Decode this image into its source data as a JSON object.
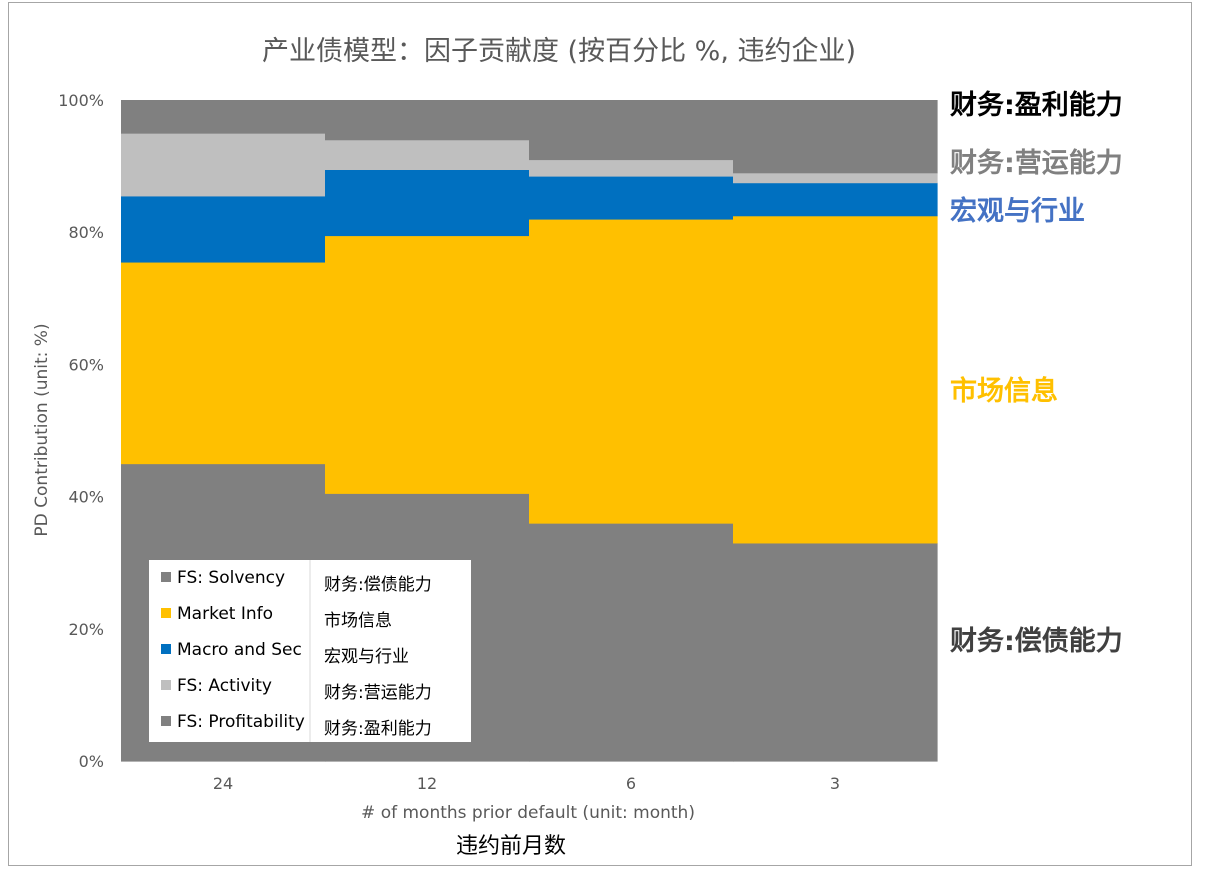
{
  "chart_data": {
    "type": "bar",
    "stacked": true,
    "title": "产业债模型：因子贡献度 (按百分比 %, 违约企业)",
    "xlabel": "# of months prior default (unit: month)",
    "xlabel_sub": "违约前月数",
    "ylabel": "PD Contribution (unit: %)",
    "ylim": [
      0,
      100
    ],
    "yticks": [
      "0%",
      "20%",
      "40%",
      "60%",
      "80%",
      "100%"
    ],
    "categories": [
      "24",
      "12",
      "6",
      "3"
    ],
    "grid": false,
    "legend_position": "bottom-left",
    "series": [
      {
        "name": "FS: Solvency",
        "name_cn": "财务:偿债能力",
        "color": "#808080",
        "values": [
          45,
          40.5,
          36,
          33
        ]
      },
      {
        "name": "Market Info",
        "name_cn": "市场信息",
        "color": "#ffc000",
        "values": [
          30.5,
          39,
          46,
          49.5
        ]
      },
      {
        "name": "Macro and Sec",
        "name_cn": "宏观与行业",
        "color": "#0070c0",
        "values": [
          10,
          10,
          6.5,
          5
        ]
      },
      {
        "name": "FS: Activity",
        "name_cn": "财务:营运能力",
        "color": "#bfbfbf",
        "values": [
          9.5,
          4.5,
          2.5,
          1.5
        ]
      },
      {
        "name": "FS: Profitability",
        "name_cn": "财务:盈利能力",
        "color": "#808080",
        "values": [
          5,
          6,
          9,
          11
        ]
      }
    ],
    "side_labels": [
      {
        "text": "财务:盈利能力",
        "color": "#000000"
      },
      {
        "text": "财务:营运能力",
        "color": "#808080"
      },
      {
        "text": "宏观与行业",
        "color": "#4472c4"
      },
      {
        "text": "市场信息",
        "color": "#ffc000"
      },
      {
        "text": "财务:偿债能力",
        "color": "#404040"
      }
    ]
  }
}
